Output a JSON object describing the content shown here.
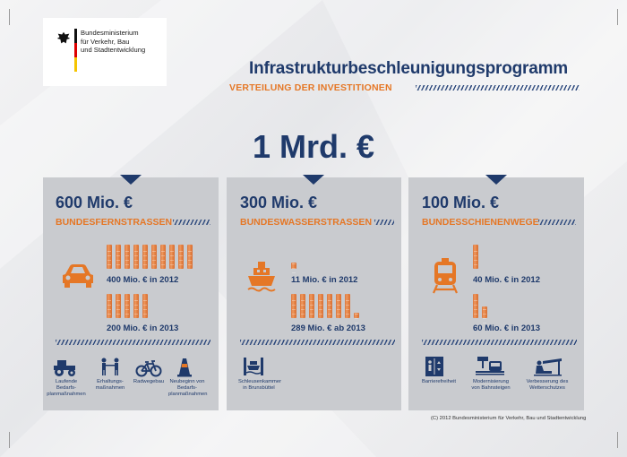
{
  "logo": {
    "lines": [
      "Bundesministerium",
      "für Verkehr, Bau",
      "und Stadtentwicklung"
    ]
  },
  "header": {
    "title": "Infrastrukturbeschleunigungsprogramm",
    "subtitle": "VERTEILUNG DER INVESTITIONEN"
  },
  "total": "1 Mrd. €",
  "colors": {
    "navy": "#1f3a6b",
    "orange": "#e57726",
    "panel": "#c9cbcf"
  },
  "panels": [
    {
      "amount": "600 Mio. €",
      "category": "BUNDESFERNSTRASSEN",
      "icon": "car-icon",
      "rows": [
        {
          "label": "400 Mio. € in 2012",
          "value_mio": 400
        },
        {
          "label": "200 Mio. € in 2013",
          "value_mio": 200
        }
      ],
      "items": [
        {
          "icon": "tractor-icon",
          "label": "Laufende Bedarfs-planmaßnahmen"
        },
        {
          "icon": "workers-icon",
          "label": "Erhaltungs-maßnahmen"
        },
        {
          "icon": "bicycle-icon",
          "label": "Radwegebau"
        },
        {
          "icon": "traffic-cone-icon",
          "label": "Neubeginn von Bedarfs-planmaßnahmen"
        }
      ]
    },
    {
      "amount": "300 Mio. €",
      "category": "BUNDESWASSERSTRASSEN",
      "icon": "ship-icon",
      "rows": [
        {
          "label": "11 Mio. € in 2012",
          "value_mio": 11
        },
        {
          "label": "289 Mio. € ab 2013",
          "value_mio": 289
        }
      ],
      "items": [
        {
          "icon": "lock-chamber-icon",
          "label": "Schleusenkammer in Brunsbüttel"
        }
      ]
    },
    {
      "amount": "100 Mio. €",
      "category": "BUNDESSCHIENENWEGE",
      "icon": "train-icon",
      "rows": [
        {
          "label": "40 Mio. € in 2012",
          "value_mio": 40
        },
        {
          "label": "60 Mio. € in 2013",
          "value_mio": 60
        }
      ],
      "items": [
        {
          "icon": "elevator-icon",
          "label": "Barrierefreiheit"
        },
        {
          "icon": "platform-icon",
          "label": "Modernisierung von Bahnsteigen"
        },
        {
          "icon": "shelter-icon",
          "label": "Verbesserung des Wetterschutzes"
        }
      ]
    }
  ],
  "copyright": "(C) 2012 Bundesministerium für Verkehr, Bau und Stadtentwicklung"
}
